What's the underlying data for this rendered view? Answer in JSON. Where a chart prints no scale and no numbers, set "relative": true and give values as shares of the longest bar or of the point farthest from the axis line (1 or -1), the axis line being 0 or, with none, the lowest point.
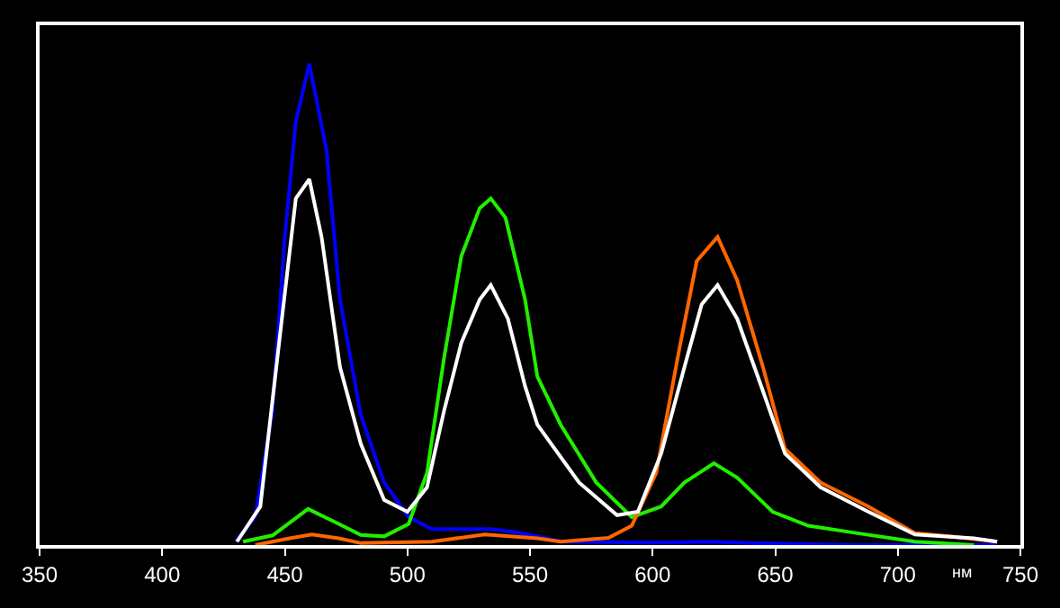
{
  "chart_data": {
    "type": "line",
    "relative": true,
    "xlabel": "нм",
    "xlim": [
      350,
      750
    ],
    "xticks": [
      350,
      400,
      450,
      500,
      550,
      600,
      650,
      700,
      750
    ],
    "grid": false,
    "marker": "none",
    "line_style": "solid",
    "series": [
      {
        "color": "#0000ff",
        "x": [
          430,
          438,
          445,
          450,
          454.5,
          460,
          467,
          472.5,
          481,
          490.5,
          500.5,
          510,
          534,
          545,
          553,
          563,
          600,
          623,
          640,
          683,
          740
        ],
        "values": [
          0.007,
          0.06,
          0.28,
          0.64,
          0.88,
          1.0,
          0.82,
          0.51,
          0.27,
          0.13,
          0.058,
          0.033,
          0.033,
          0.026,
          0.018,
          0.007,
          0.005,
          0.007,
          0.004,
          0.0,
          0.0
        ]
      },
      {
        "color": "#22ee00",
        "x": [
          433,
          445,
          459.5,
          472,
          481,
          490.5,
          500.5,
          508,
          515,
          522,
          529.5,
          534,
          540,
          548,
          553,
          562.5,
          577,
          591.5,
          603.5,
          613,
          625,
          634.5,
          649,
          663.5,
          683,
          707,
          731
        ],
        "values": [
          0.007,
          0.02,
          0.075,
          0.044,
          0.021,
          0.018,
          0.044,
          0.15,
          0.39,
          0.6,
          0.7,
          0.72,
          0.68,
          0.51,
          0.35,
          0.25,
          0.13,
          0.058,
          0.08,
          0.13,
          0.17,
          0.14,
          0.069,
          0.04,
          0.025,
          0.007,
          0.0
        ]
      },
      {
        "color": "#ff6600",
        "x": [
          438,
          452,
          461,
          472,
          481,
          510,
          531.5,
          553,
          562.5,
          582,
          591.5,
          601.5,
          611,
          618,
          626.5,
          634.5,
          645,
          654,
          668.5,
          688,
          707,
          721,
          740.5
        ],
        "values": [
          0.0,
          0.014,
          0.022,
          0.014,
          0.004,
          0.007,
          0.022,
          0.014,
          0.007,
          0.015,
          0.04,
          0.15,
          0.41,
          0.59,
          0.64,
          0.55,
          0.37,
          0.2,
          0.13,
          0.08,
          0.025,
          0.018,
          0.007
        ]
      },
      {
        "color": "#ffffff",
        "x": [
          430.5,
          440,
          447,
          454.5,
          460,
          465,
          472.5,
          481,
          490.5,
          500,
          508,
          515,
          522,
          529.5,
          534,
          541,
          548,
          553,
          570,
          585.5,
          594,
          603.5,
          613,
          620,
          626.5,
          634.5,
          645,
          654,
          668.5,
          688,
          707,
          731,
          740.5
        ],
        "values": [
          0.007,
          0.08,
          0.39,
          0.72,
          0.76,
          0.64,
          0.37,
          0.21,
          0.094,
          0.069,
          0.12,
          0.28,
          0.42,
          0.51,
          0.54,
          0.47,
          0.33,
          0.25,
          0.13,
          0.062,
          0.069,
          0.19,
          0.37,
          0.5,
          0.54,
          0.47,
          0.32,
          0.19,
          0.12,
          0.069,
          0.022,
          0.014,
          0.007
        ]
      }
    ]
  }
}
